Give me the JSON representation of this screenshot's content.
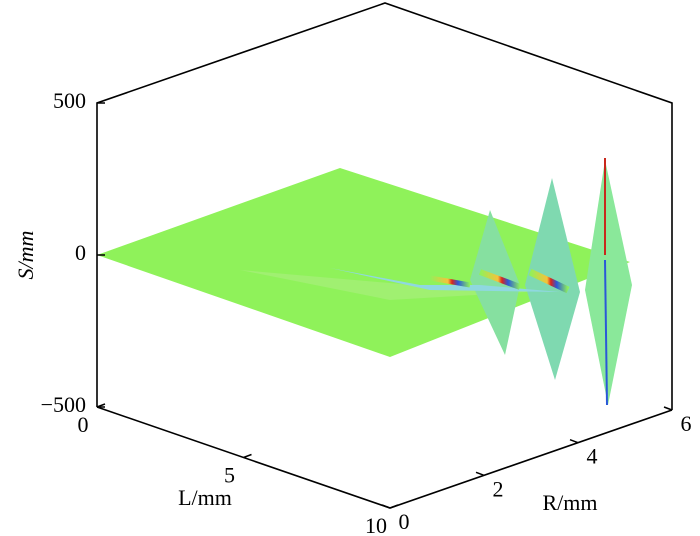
{
  "chart_data": {
    "type": "surface3d",
    "zlabel": "S/mm",
    "xlabel": "L/mm",
    "ylabel": "R/mm",
    "zlim": [
      -500,
      500
    ],
    "zticks": [
      {
        "value": -500,
        "label": "−500"
      },
      0,
      500
    ],
    "xlim": [
      0,
      10
    ],
    "xticks": [
      0,
      5,
      10
    ],
    "ylim": [
      0,
      6
    ],
    "yticks": [
      0,
      2,
      4,
      6
    ]
  }
}
